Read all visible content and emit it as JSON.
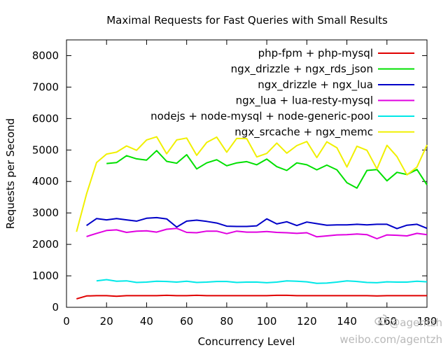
{
  "chart_data": {
    "type": "line",
    "title": "Maximal Requests for Fast Queries with Small Results",
    "xlabel": "Concurrency Level",
    "ylabel": "Requests per Second",
    "xlim": [
      0,
      180
    ],
    "ylim": [
      0,
      8500
    ],
    "xticks": [
      0,
      20,
      40,
      60,
      80,
      100,
      120,
      140,
      160,
      180
    ],
    "yticks": [
      0,
      1000,
      2000,
      3000,
      4000,
      5000,
      6000,
      7000,
      8000
    ],
    "grid": false,
    "legend_position": "top-right",
    "series": [
      {
        "name": "php-fpm + php-mysql",
        "color": "#e00000",
        "x": [
          5,
          10,
          15,
          20,
          25,
          30,
          35,
          40,
          45,
          50,
          55,
          60,
          65,
          70,
          75,
          80,
          85,
          90,
          95,
          100,
          105,
          110,
          115,
          120,
          125,
          130,
          135,
          140,
          145,
          150,
          155,
          160,
          165,
          170,
          175,
          180
        ],
        "y": [
          270,
          360,
          370,
          370,
          350,
          370,
          370,
          370,
          370,
          380,
          370,
          370,
          380,
          370,
          370,
          370,
          370,
          370,
          370,
          370,
          380,
          380,
          370,
          370,
          370,
          370,
          370,
          370,
          370,
          370,
          360,
          370,
          370,
          370,
          370,
          370
        ]
      },
      {
        "name": "ngx_drizzle + ngx_rds_json",
        "color": "#00e000",
        "x": [
          20,
          25,
          30,
          35,
          40,
          45,
          50,
          55,
          60,
          65,
          70,
          75,
          80,
          85,
          90,
          95,
          100,
          105,
          110,
          115,
          120,
          125,
          130,
          135,
          140,
          145,
          150,
          155,
          160,
          165,
          170,
          175,
          180
        ],
        "y": [
          4570,
          4600,
          4820,
          4720,
          4680,
          4980,
          4640,
          4580,
          4850,
          4400,
          4590,
          4690,
          4500,
          4590,
          4630,
          4530,
          4710,
          4470,
          4350,
          4590,
          4530,
          4370,
          4520,
          4370,
          3960,
          3790,
          4350,
          4380,
          4020,
          4290,
          4220,
          4380,
          3890
        ]
      },
      {
        "name": "ngx_drizzle + ngx_lua",
        "color": "#0000c8",
        "x": [
          10,
          15,
          20,
          25,
          30,
          35,
          40,
          45,
          50,
          55,
          60,
          65,
          70,
          75,
          80,
          85,
          90,
          95,
          100,
          105,
          110,
          115,
          120,
          125,
          130,
          135,
          140,
          145,
          150,
          155,
          160,
          165,
          170,
          175,
          180
        ],
        "y": [
          2600,
          2820,
          2780,
          2820,
          2780,
          2740,
          2830,
          2850,
          2810,
          2550,
          2740,
          2770,
          2730,
          2680,
          2580,
          2570,
          2570,
          2590,
          2810,
          2650,
          2720,
          2600,
          2710,
          2660,
          2610,
          2620,
          2620,
          2640,
          2620,
          2640,
          2640,
          2500,
          2610,
          2640,
          2510
        ]
      },
      {
        "name": "ngx_lua + lua-resty-mysql",
        "color": "#e000e0",
        "x": [
          10,
          15,
          20,
          25,
          30,
          35,
          40,
          45,
          50,
          55,
          60,
          65,
          70,
          75,
          80,
          85,
          90,
          95,
          100,
          105,
          110,
          115,
          120,
          125,
          130,
          135,
          140,
          145,
          150,
          155,
          160,
          165,
          170,
          175,
          180
        ],
        "y": [
          2250,
          2350,
          2440,
          2460,
          2380,
          2420,
          2430,
          2390,
          2480,
          2510,
          2380,
          2370,
          2420,
          2420,
          2340,
          2420,
          2390,
          2390,
          2410,
          2380,
          2370,
          2350,
          2370,
          2240,
          2270,
          2300,
          2310,
          2330,
          2310,
          2180,
          2300,
          2290,
          2270,
          2350,
          2310
        ]
      },
      {
        "name": "nodejs + node-mysql + node-generic-pool",
        "color": "#00e8e8",
        "x": [
          15,
          20,
          25,
          30,
          35,
          40,
          45,
          50,
          55,
          60,
          65,
          70,
          75,
          80,
          85,
          90,
          95,
          100,
          105,
          110,
          115,
          120,
          125,
          130,
          135,
          140,
          145,
          150,
          155,
          160,
          165,
          170,
          175,
          180
        ],
        "y": [
          840,
          880,
          830,
          840,
          790,
          800,
          830,
          820,
          800,
          830,
          790,
          800,
          820,
          820,
          790,
          800,
          800,
          780,
          800,
          840,
          830,
          810,
          760,
          770,
          800,
          840,
          820,
          790,
          780,
          810,
          800,
          800,
          830,
          810
        ]
      },
      {
        "name": "ngx_srcache + ngx_memc",
        "color": "#f0f000",
        "x": [
          5,
          10,
          15,
          20,
          25,
          30,
          35,
          40,
          45,
          50,
          55,
          60,
          65,
          70,
          75,
          80,
          85,
          90,
          95,
          100,
          105,
          110,
          115,
          120,
          125,
          130,
          135,
          140,
          145,
          150,
          155,
          160,
          165,
          170,
          175,
          180
        ],
        "y": [
          2400,
          3600,
          4600,
          4870,
          4930,
          5130,
          4990,
          5320,
          5420,
          4880,
          5320,
          5380,
          4830,
          5240,
          5410,
          4930,
          5370,
          5360,
          4780,
          4890,
          5220,
          4900,
          5140,
          5270,
          4760,
          5260,
          5070,
          4460,
          5120,
          4990,
          4400,
          5150,
          4790,
          4210,
          4460,
          5160
        ]
      }
    ]
  },
  "watermark": {
    "handle": "@agentzh",
    "url": "weibo.com/agentzh",
    "icon": "weibo-eye-icon"
  }
}
